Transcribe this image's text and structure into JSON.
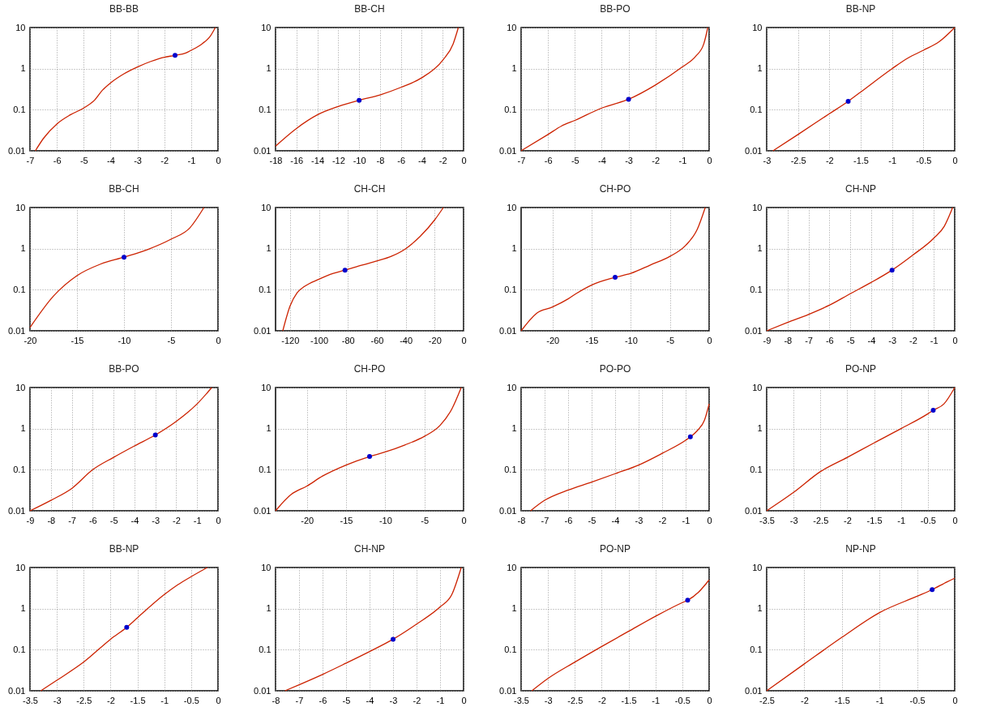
{
  "chart_data": [
    {
      "type": "line",
      "title": "BB-BB",
      "xlim": [
        -7,
        0
      ],
      "xticks": [
        -7,
        -6,
        -5,
        -4,
        -3,
        -2,
        -1,
        0
      ],
      "ylim": [
        0.01,
        10
      ],
      "yticks": [
        0.01,
        0.1,
        1,
        10
      ],
      "log": "y",
      "grid": true,
      "series": [
        {
          "color": "#cc2200",
          "x": [
            -6.8,
            -6.5,
            -6,
            -5.5,
            -5,
            -4.6,
            -4.3,
            -4,
            -3.5,
            -3,
            -2.5,
            -2,
            -1.6,
            -1.2,
            -1,
            -0.6,
            -0.3,
            -0.1
          ],
          "values": [
            0.01,
            0.02,
            0.045,
            0.075,
            0.11,
            0.17,
            0.3,
            0.45,
            0.75,
            1.1,
            1.5,
            1.9,
            2.1,
            2.4,
            2.8,
            4,
            6,
            10
          ]
        },
        {
          "type": "scatter",
          "marker": "circle",
          "color": "#0000cc",
          "x": [
            -1.6
          ],
          "values": [
            2.1
          ]
        }
      ]
    },
    {
      "type": "line",
      "title": "BB-CH",
      "xlim": [
        -18,
        0
      ],
      "xticks": [
        -18,
        -16,
        -14,
        -12,
        -10,
        -8,
        -6,
        -4,
        -2,
        0
      ],
      "ylim": [
        0.01,
        10
      ],
      "yticks": [
        0.01,
        0.1,
        1,
        10
      ],
      "log": "y",
      "grid": true,
      "series": [
        {
          "color": "#cc2200",
          "x": [
            -18,
            -16,
            -14,
            -12,
            -10,
            -8,
            -6,
            -4,
            -2,
            -1,
            -0.5
          ],
          "values": [
            0.013,
            0.035,
            0.075,
            0.12,
            0.17,
            0.23,
            0.35,
            0.6,
            1.6,
            4,
            10
          ]
        },
        {
          "type": "scatter",
          "marker": "circle",
          "color": "#0000cc",
          "x": [
            -10
          ],
          "values": [
            0.17
          ]
        }
      ]
    },
    {
      "type": "line",
      "title": "BB-PO",
      "xlim": [
        -7,
        0
      ],
      "xticks": [
        -7,
        -6,
        -5,
        -4,
        -3,
        -2,
        -1,
        0
      ],
      "ylim": [
        0.01,
        10
      ],
      "yticks": [
        0.01,
        0.1,
        1,
        10
      ],
      "log": "y",
      "grid": true,
      "series": [
        {
          "color": "#cc2200",
          "x": [
            -7,
            -6,
            -5.5,
            -5,
            -4,
            -3,
            -2,
            -1,
            -0.5,
            -0.2,
            -0.05
          ],
          "values": [
            0.01,
            0.025,
            0.04,
            0.055,
            0.11,
            0.18,
            0.4,
            1.1,
            2,
            4,
            10
          ]
        },
        {
          "type": "scatter",
          "marker": "circle",
          "color": "#0000cc",
          "x": [
            -3
          ],
          "values": [
            0.18
          ]
        }
      ]
    },
    {
      "type": "line",
      "title": "BB-NP",
      "xlim": [
        -3,
        0
      ],
      "xticks": [
        -3,
        -2.5,
        -2,
        -1.5,
        -1,
        -0.5,
        0
      ],
      "ylim": [
        0.01,
        10
      ],
      "yticks": [
        0.01,
        0.1,
        1,
        10
      ],
      "log": "y",
      "grid": true,
      "series": [
        {
          "color": "#cc2200",
          "x": [
            -2.9,
            -2.5,
            -2,
            -1.7,
            -1.5,
            -1,
            -0.75,
            -0.5,
            -0.25,
            0
          ],
          "values": [
            0.01,
            0.025,
            0.08,
            0.16,
            0.27,
            1,
            1.8,
            2.8,
            4.5,
            10
          ]
        },
        {
          "type": "scatter",
          "marker": "circle",
          "color": "#0000cc",
          "x": [
            -1.7
          ],
          "values": [
            0.16
          ]
        }
      ]
    },
    {
      "type": "line",
      "title": "BB-CH",
      "xlim": [
        -20,
        0
      ],
      "xticks": [
        -20,
        -15,
        -10,
        -5,
        0
      ],
      "ylim": [
        0.01,
        10
      ],
      "yticks": [
        0.01,
        0.1,
        1,
        10
      ],
      "log": "y",
      "grid": true,
      "series": [
        {
          "color": "#cc2200",
          "x": [
            -20,
            -17.5,
            -15,
            -12.5,
            -10,
            -7.5,
            -5,
            -3,
            -1.5
          ],
          "values": [
            0.012,
            0.07,
            0.22,
            0.42,
            0.62,
            0.95,
            1.7,
            3.2,
            10
          ]
        },
        {
          "type": "scatter",
          "marker": "circle",
          "color": "#0000cc",
          "x": [
            -10
          ],
          "values": [
            0.62
          ]
        }
      ]
    },
    {
      "type": "line",
      "title": "CH-CH",
      "xlim": [
        -130,
        0
      ],
      "xticks": [
        -120,
        -100,
        -80,
        -60,
        -40,
        -20,
        0
      ],
      "ylim": [
        0.01,
        10
      ],
      "yticks": [
        0.01,
        0.1,
        1,
        10
      ],
      "log": "y",
      "grid": true,
      "series": [
        {
          "color": "#cc2200",
          "x": [
            -125,
            -120,
            -115,
            -110,
            -100,
            -90,
            -82,
            -70,
            -60,
            -50,
            -40,
            -30,
            -20,
            -14
          ],
          "values": [
            0.01,
            0.04,
            0.085,
            0.12,
            0.18,
            0.25,
            0.3,
            0.4,
            0.5,
            0.65,
            1,
            2,
            5,
            10
          ]
        },
        {
          "type": "scatter",
          "marker": "circle",
          "color": "#0000cc",
          "x": [
            -82
          ],
          "values": [
            0.3
          ]
        }
      ]
    },
    {
      "type": "line",
      "title": "CH-PO",
      "xlim": [
        -24,
        0
      ],
      "xticks": [
        -20,
        -15,
        -10,
        -5,
        0
      ],
      "ylim": [
        0.01,
        10
      ],
      "yticks": [
        0.01,
        0.1,
        1,
        10
      ],
      "log": "y",
      "grid": true,
      "series": [
        {
          "color": "#cc2200",
          "x": [
            -24,
            -22,
            -20,
            -18,
            -17,
            -15,
            -12,
            -10,
            -7.5,
            -5,
            -3,
            -1.5,
            -0.5
          ],
          "values": [
            0.01,
            0.027,
            0.038,
            0.06,
            0.08,
            0.13,
            0.2,
            0.25,
            0.4,
            0.65,
            1.2,
            3,
            10
          ]
        },
        {
          "type": "scatter",
          "marker": "circle",
          "color": "#0000cc",
          "x": [
            -12
          ],
          "values": [
            0.2
          ]
        }
      ]
    },
    {
      "type": "line",
      "title": "CH-NP",
      "xlim": [
        -9,
        0
      ],
      "xticks": [
        -9,
        -8,
        -7,
        -6,
        -5,
        -4,
        -3,
        -2,
        -1,
        0
      ],
      "ylim": [
        0.01,
        10
      ],
      "yticks": [
        0.01,
        0.1,
        1,
        10
      ],
      "log": "y",
      "grid": true,
      "series": [
        {
          "color": "#cc2200",
          "x": [
            -9,
            -8,
            -7,
            -6,
            -5,
            -4,
            -3,
            -2,
            -1,
            -0.5,
            -0.1
          ],
          "values": [
            0.01,
            0.016,
            0.025,
            0.042,
            0.08,
            0.15,
            0.3,
            0.7,
            1.8,
            3.5,
            10
          ]
        },
        {
          "type": "scatter",
          "marker": "circle",
          "color": "#0000cc",
          "x": [
            -3
          ],
          "values": [
            0.3
          ]
        }
      ]
    },
    {
      "type": "line",
      "title": "BB-PO",
      "xlim": [
        -9,
        0
      ],
      "xticks": [
        -9,
        -8,
        -7,
        -6,
        -5,
        -4,
        -3,
        -2,
        -1,
        0
      ],
      "ylim": [
        0.01,
        10
      ],
      "yticks": [
        0.01,
        0.1,
        1,
        10
      ],
      "log": "y",
      "grid": true,
      "series": [
        {
          "color": "#cc2200",
          "x": [
            -9,
            -8,
            -7,
            -6,
            -5,
            -4,
            -3,
            -2,
            -1,
            -0.3
          ],
          "values": [
            0.01,
            0.018,
            0.035,
            0.1,
            0.2,
            0.38,
            0.7,
            1.5,
            4,
            10
          ]
        },
        {
          "type": "scatter",
          "marker": "circle",
          "color": "#0000cc",
          "x": [
            -3
          ],
          "values": [
            0.7
          ]
        }
      ]
    },
    {
      "type": "line",
      "title": "CH-PO",
      "xlim": [
        -24,
        0
      ],
      "xticks": [
        -20,
        -15,
        -10,
        -5,
        0
      ],
      "ylim": [
        0.01,
        10
      ],
      "yticks": [
        0.01,
        0.1,
        1,
        10
      ],
      "log": "y",
      "grid": true,
      "series": [
        {
          "color": "#cc2200",
          "x": [
            -24,
            -22,
            -20,
            -18,
            -15,
            -12,
            -10,
            -7.5,
            -5,
            -3,
            -1.5,
            -0.3
          ],
          "values": [
            0.01,
            0.025,
            0.04,
            0.07,
            0.13,
            0.21,
            0.27,
            0.4,
            0.65,
            1.2,
            3,
            10
          ]
        },
        {
          "type": "scatter",
          "marker": "circle",
          "color": "#0000cc",
          "x": [
            -12
          ],
          "values": [
            0.21
          ]
        }
      ]
    },
    {
      "type": "line",
      "title": "PO-PO",
      "xlim": [
        -8,
        0
      ],
      "xticks": [
        -8,
        -7,
        -6,
        -5,
        -4,
        -3,
        -2,
        -1,
        0
      ],
      "ylim": [
        0.01,
        10
      ],
      "yticks": [
        0.01,
        0.1,
        1,
        10
      ],
      "log": "y",
      "grid": true,
      "series": [
        {
          "color": "#cc2200",
          "x": [
            -7.6,
            -7,
            -6,
            -5,
            -4,
            -3,
            -2,
            -1,
            -0.8,
            -0.5,
            -0.2,
            0
          ],
          "values": [
            0.01,
            0.018,
            0.032,
            0.05,
            0.08,
            0.13,
            0.25,
            0.52,
            0.63,
            0.9,
            1.6,
            4
          ]
        },
        {
          "type": "scatter",
          "marker": "circle",
          "color": "#0000cc",
          "x": [
            -0.8
          ],
          "values": [
            0.63
          ]
        }
      ]
    },
    {
      "type": "line",
      "title": "PO-NP",
      "xlim": [
        -3.5,
        0
      ],
      "xticks": [
        -3.5,
        -3,
        -2.5,
        -2,
        -1.5,
        -1,
        -0.5,
        0
      ],
      "ylim": [
        0.01,
        10
      ],
      "yticks": [
        0.01,
        0.1,
        1,
        10
      ],
      "log": "y",
      "grid": true,
      "series": [
        {
          "color": "#cc2200",
          "x": [
            -3.5,
            -3,
            -2.5,
            -2,
            -1.5,
            -1,
            -0.5,
            -0.4,
            -0.2,
            0
          ],
          "values": [
            0.01,
            0.028,
            0.09,
            0.2,
            0.45,
            1,
            2.3,
            2.8,
            4,
            10
          ]
        },
        {
          "type": "scatter",
          "marker": "circle",
          "color": "#0000cc",
          "x": [
            -0.4
          ],
          "values": [
            2.8
          ]
        }
      ]
    },
    {
      "type": "line",
      "title": "BB-NP",
      "xlim": [
        -3.5,
        0
      ],
      "xticks": [
        -3.5,
        -3,
        -2.5,
        -2,
        -1.5,
        -1,
        -0.5,
        0
      ],
      "ylim": [
        0.01,
        10
      ],
      "yticks": [
        0.01,
        0.1,
        1,
        10
      ],
      "log": "y",
      "grid": true,
      "series": [
        {
          "color": "#cc2200",
          "x": [
            -3.3,
            -3,
            -2.5,
            -2,
            -1.7,
            -1.5,
            -1,
            -0.75,
            -0.5,
            -0.2
          ],
          "values": [
            0.01,
            0.018,
            0.05,
            0.18,
            0.35,
            0.6,
            2.2,
            3.8,
            6,
            10
          ]
        },
        {
          "type": "scatter",
          "marker": "circle",
          "color": "#0000cc",
          "x": [
            -1.7
          ],
          "values": [
            0.35
          ]
        }
      ]
    },
    {
      "type": "line",
      "title": "CH-NP",
      "xlim": [
        -8,
        0
      ],
      "xticks": [
        -8,
        -7,
        -6,
        -5,
        -4,
        -3,
        -2,
        -1,
        0
      ],
      "ylim": [
        0.01,
        10
      ],
      "yticks": [
        0.01,
        0.1,
        1,
        10
      ],
      "log": "y",
      "grid": true,
      "series": [
        {
          "color": "#cc2200",
          "x": [
            -7.6,
            -7,
            -6,
            -5,
            -4,
            -3,
            -2,
            -1,
            -0.5,
            -0.1
          ],
          "values": [
            0.01,
            0.014,
            0.025,
            0.047,
            0.09,
            0.18,
            0.42,
            1.1,
            2.2,
            10
          ]
        },
        {
          "type": "scatter",
          "marker": "circle",
          "color": "#0000cc",
          "x": [
            -3
          ],
          "values": [
            0.18
          ]
        }
      ]
    },
    {
      "type": "line",
      "title": "PO-NP",
      "xlim": [
        -3.5,
        0
      ],
      "xticks": [
        -3.5,
        -3,
        -2.5,
        -2,
        -1.5,
        -1,
        -0.5,
        0
      ],
      "ylim": [
        0.01,
        10
      ],
      "yticks": [
        0.01,
        0.1,
        1,
        10
      ],
      "log": "y",
      "grid": true,
      "series": [
        {
          "color": "#cc2200",
          "x": [
            -3.3,
            -3,
            -2.5,
            -2,
            -1.5,
            -1,
            -0.5,
            -0.4,
            -0.2,
            0
          ],
          "values": [
            0.01,
            0.02,
            0.05,
            0.12,
            0.28,
            0.65,
            1.4,
            1.6,
            2.5,
            5
          ]
        },
        {
          "type": "scatter",
          "marker": "circle",
          "color": "#0000cc",
          "x": [
            -0.4
          ],
          "values": [
            1.6
          ]
        }
      ]
    },
    {
      "type": "line",
      "title": "NP-NP",
      "xlim": [
        -2.5,
        0
      ],
      "xticks": [
        -2.5,
        -2,
        -1.5,
        -1,
        -0.5,
        0
      ],
      "ylim": [
        0.01,
        10
      ],
      "yticks": [
        0.01,
        0.1,
        1,
        10
      ],
      "log": "y",
      "grid": true,
      "series": [
        {
          "color": "#cc2200",
          "x": [
            -2.5,
            -2,
            -1.5,
            -1,
            -0.5,
            -0.3,
            -0.1,
            0
          ],
          "values": [
            0.01,
            0.045,
            0.2,
            0.8,
            2,
            2.9,
            4.5,
            5.5
          ]
        },
        {
          "type": "scatter",
          "marker": "circle",
          "color": "#0000cc",
          "x": [
            -0.3
          ],
          "values": [
            2.9
          ]
        }
      ]
    }
  ]
}
